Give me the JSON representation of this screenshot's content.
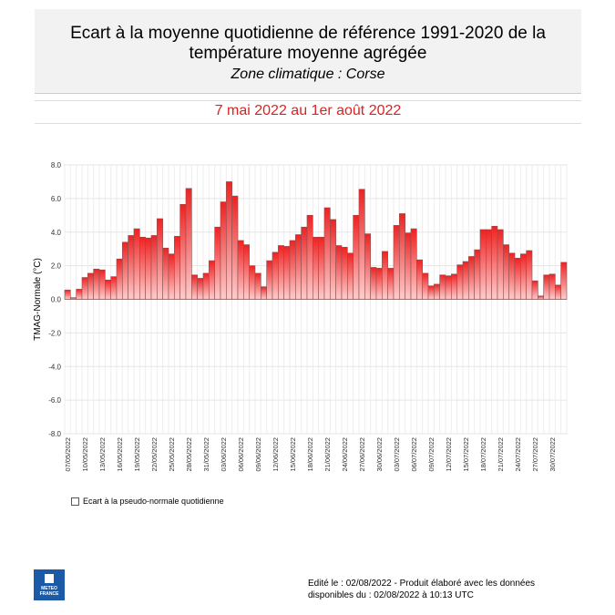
{
  "header": {
    "title": "Ecart à la moyenne quotidienne de référence 1991-2020 de la température moyenne  agrégée",
    "zone": "Zone climatique : Corse"
  },
  "period": "7 mai 2022 au 1er août 2022",
  "legend": "Ecart à la pseudo-normale quotidienne",
  "logo": "METEO FRANCE",
  "footer": {
    "line1": "Edité le : 02/08/2022 - Produit élaboré avec les données",
    "line2": "disponibles du : 02/08/2022 à 10:13 UTC"
  },
  "colors": {
    "bar_top": "#ee2222",
    "bar_bottom": "#ffd0d0",
    "title_red": "#e02020"
  },
  "chart_data": {
    "type": "bar",
    "ylabel": "TMAG-Normale (°C)",
    "ylim": [
      -8,
      8
    ],
    "yticks": [
      "-8.0",
      "-6.0",
      "-4.0",
      "-2.0",
      "0.0",
      "2.0",
      "4.0",
      "6.0",
      "8.0"
    ],
    "start_date": "07/05/2022",
    "xtick_labels": [
      "07/05/2022",
      "10/05/2022",
      "13/05/2022",
      "16/05/2022",
      "19/05/2022",
      "22/05/2022",
      "25/05/2022",
      "28/05/2022",
      "31/05/2022",
      "03/06/2022",
      "06/06/2022",
      "09/06/2022",
      "12/06/2022",
      "15/06/2022",
      "18/06/2022",
      "21/06/2022",
      "24/06/2022",
      "27/06/2022",
      "30/06/2022",
      "03/07/2022",
      "06/07/2022",
      "09/07/2022",
      "12/07/2022",
      "15/07/2022",
      "18/07/2022",
      "21/07/2022",
      "24/07/2022",
      "27/07/2022",
      "30/07/2022"
    ],
    "values": [
      0.55,
      0.1,
      0.6,
      1.3,
      1.55,
      1.8,
      1.75,
      1.15,
      1.35,
      2.4,
      3.4,
      3.8,
      4.2,
      3.7,
      3.65,
      3.8,
      4.8,
      3.05,
      2.7,
      3.75,
      5.65,
      6.6,
      1.45,
      1.25,
      1.55,
      2.3,
      4.3,
      5.8,
      7.0,
      6.15,
      3.5,
      3.25,
      2.0,
      1.55,
      0.75,
      2.3,
      2.8,
      3.2,
      3.15,
      3.5,
      3.85,
      4.3,
      5.0,
      3.7,
      3.7,
      5.45,
      4.75,
      3.2,
      3.1,
      2.75,
      5.0,
      6.55,
      3.9,
      1.9,
      1.85,
      2.85,
      1.85,
      4.4,
      5.1,
      3.95,
      4.2,
      2.35,
      1.55,
      0.8,
      0.9,
      1.45,
      1.4,
      1.5,
      2.05,
      2.25,
      2.55,
      2.95,
      4.15,
      4.15,
      4.35,
      4.15,
      3.25,
      2.75,
      2.45,
      2.7,
      2.9,
      1.1,
      0.2,
      1.45,
      1.5,
      0.85,
      2.2
    ],
    "legend_position": "bottom-left"
  }
}
